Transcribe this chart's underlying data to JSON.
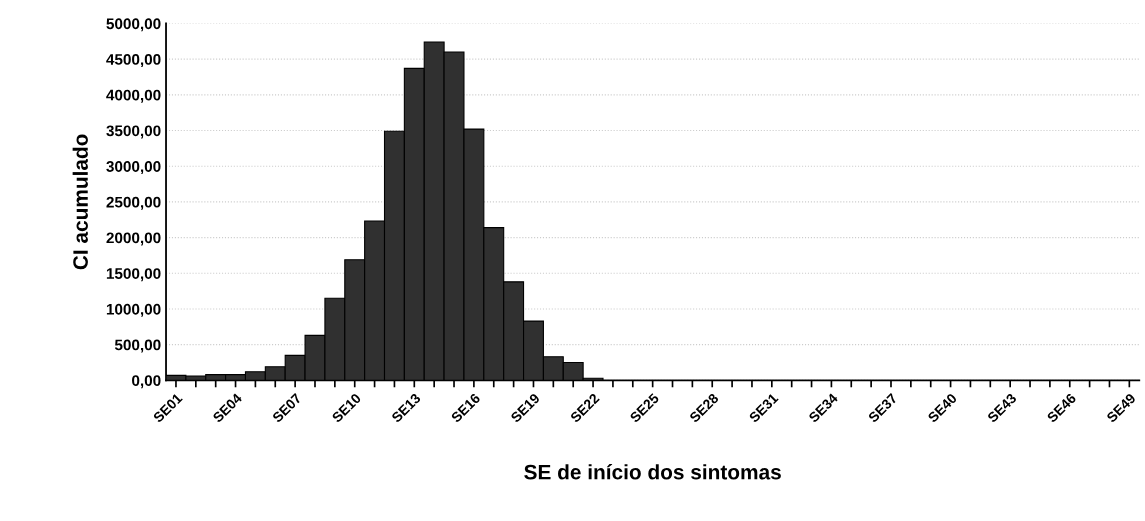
{
  "chart_data": {
    "type": "bar",
    "xlabel": "SE de início dos sintomas",
    "ylabel": "CI acumulado",
    "categories": [
      "SE01",
      null,
      null,
      "SE04",
      null,
      null,
      "SE07",
      null,
      null,
      "SE10",
      null,
      null,
      "SE13",
      null,
      null,
      "SE16",
      null,
      null,
      "SE19",
      null,
      null,
      "SE22",
      null,
      null,
      "SE25",
      null,
      null,
      "SE28",
      null,
      null,
      "SE31",
      null,
      null,
      "SE34",
      null,
      null,
      "SE37",
      null,
      null,
      "SE40",
      null,
      null,
      "SE43",
      null,
      null,
      "SE46",
      null,
      null,
      "SE49"
    ],
    "values": [
      70,
      60,
      80,
      80,
      120,
      190,
      350,
      630,
      1150,
      1690,
      2230,
      3490,
      4370,
      4740,
      4600,
      3520,
      2140,
      1380,
      830,
      330,
      250,
      30,
      0,
      0,
      0,
      0,
      0,
      0,
      0,
      0,
      0,
      0,
      0,
      0,
      0,
      0,
      0,
      0,
      0,
      0,
      0,
      0,
      0,
      0,
      0,
      0,
      0,
      0,
      0
    ],
    "color": "#303030",
    "ylim": [
      0,
      5000
    ],
    "yticks": [
      {
        "value": 0,
        "label": "0,00"
      },
      {
        "value": 500,
        "label": "500,00"
      },
      {
        "value": 1000,
        "label": "1000,00"
      },
      {
        "value": 1500,
        "label": "1500,00"
      },
      {
        "value": 2000,
        "label": "2000,00"
      },
      {
        "value": 2500,
        "label": "2500,00"
      },
      {
        "value": 3000,
        "label": "3000,00"
      },
      {
        "value": 3500,
        "label": "3500,00"
      },
      {
        "value": 4000,
        "label": "4000,00"
      },
      {
        "value": 4500,
        "label": "4500,00"
      },
      {
        "value": 5000,
        "label": "5000,00"
      }
    ],
    "grid": "y"
  }
}
